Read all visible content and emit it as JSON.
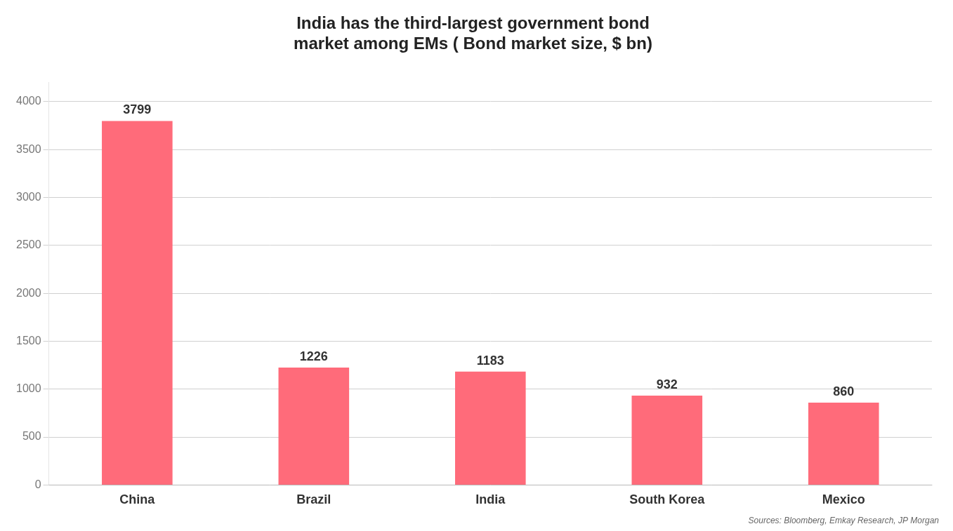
{
  "chart_data": {
    "type": "bar",
    "title": "India has the third-largest government bond\nmarket among EMs ( Bond market size, $ bn)",
    "categories": [
      "China",
      "Brazil",
      "India",
      "South Korea",
      "Mexico"
    ],
    "values": [
      3799,
      1226,
      1183,
      932,
      860
    ],
    "color": "#FF6B7A",
    "ylim": [
      0,
      4200
    ],
    "yticks": [
      0,
      500,
      1000,
      1500,
      2000,
      2500,
      3000,
      3500,
      4000
    ],
    "grid": true,
    "data_labels": true,
    "annotations": [
      "Sources: Bloomberg, Emkay Research, JP Morgan"
    ]
  }
}
